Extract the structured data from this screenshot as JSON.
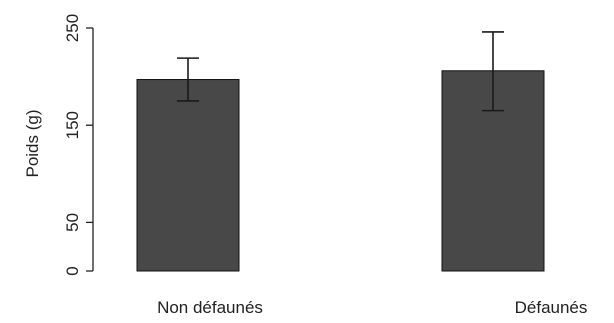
{
  "chart_data": {
    "type": "bar",
    "categories": [
      "Non défaunés",
      "Défaunés"
    ],
    "series": [
      {
        "values": [
          197,
          206
        ],
        "error_low": [
          175,
          165
        ],
        "error_high": [
          219,
          246
        ]
      }
    ],
    "ylabel": "Poids (g)",
    "xlabel": "",
    "ylim": [
      0,
      250
    ],
    "yticks": [
      0,
      50,
      150,
      250
    ],
    "ytick_labels": [
      "0",
      "50",
      "150",
      "250"
    ],
    "bar_color": "#484848",
    "grid": false,
    "legend": "none"
  }
}
